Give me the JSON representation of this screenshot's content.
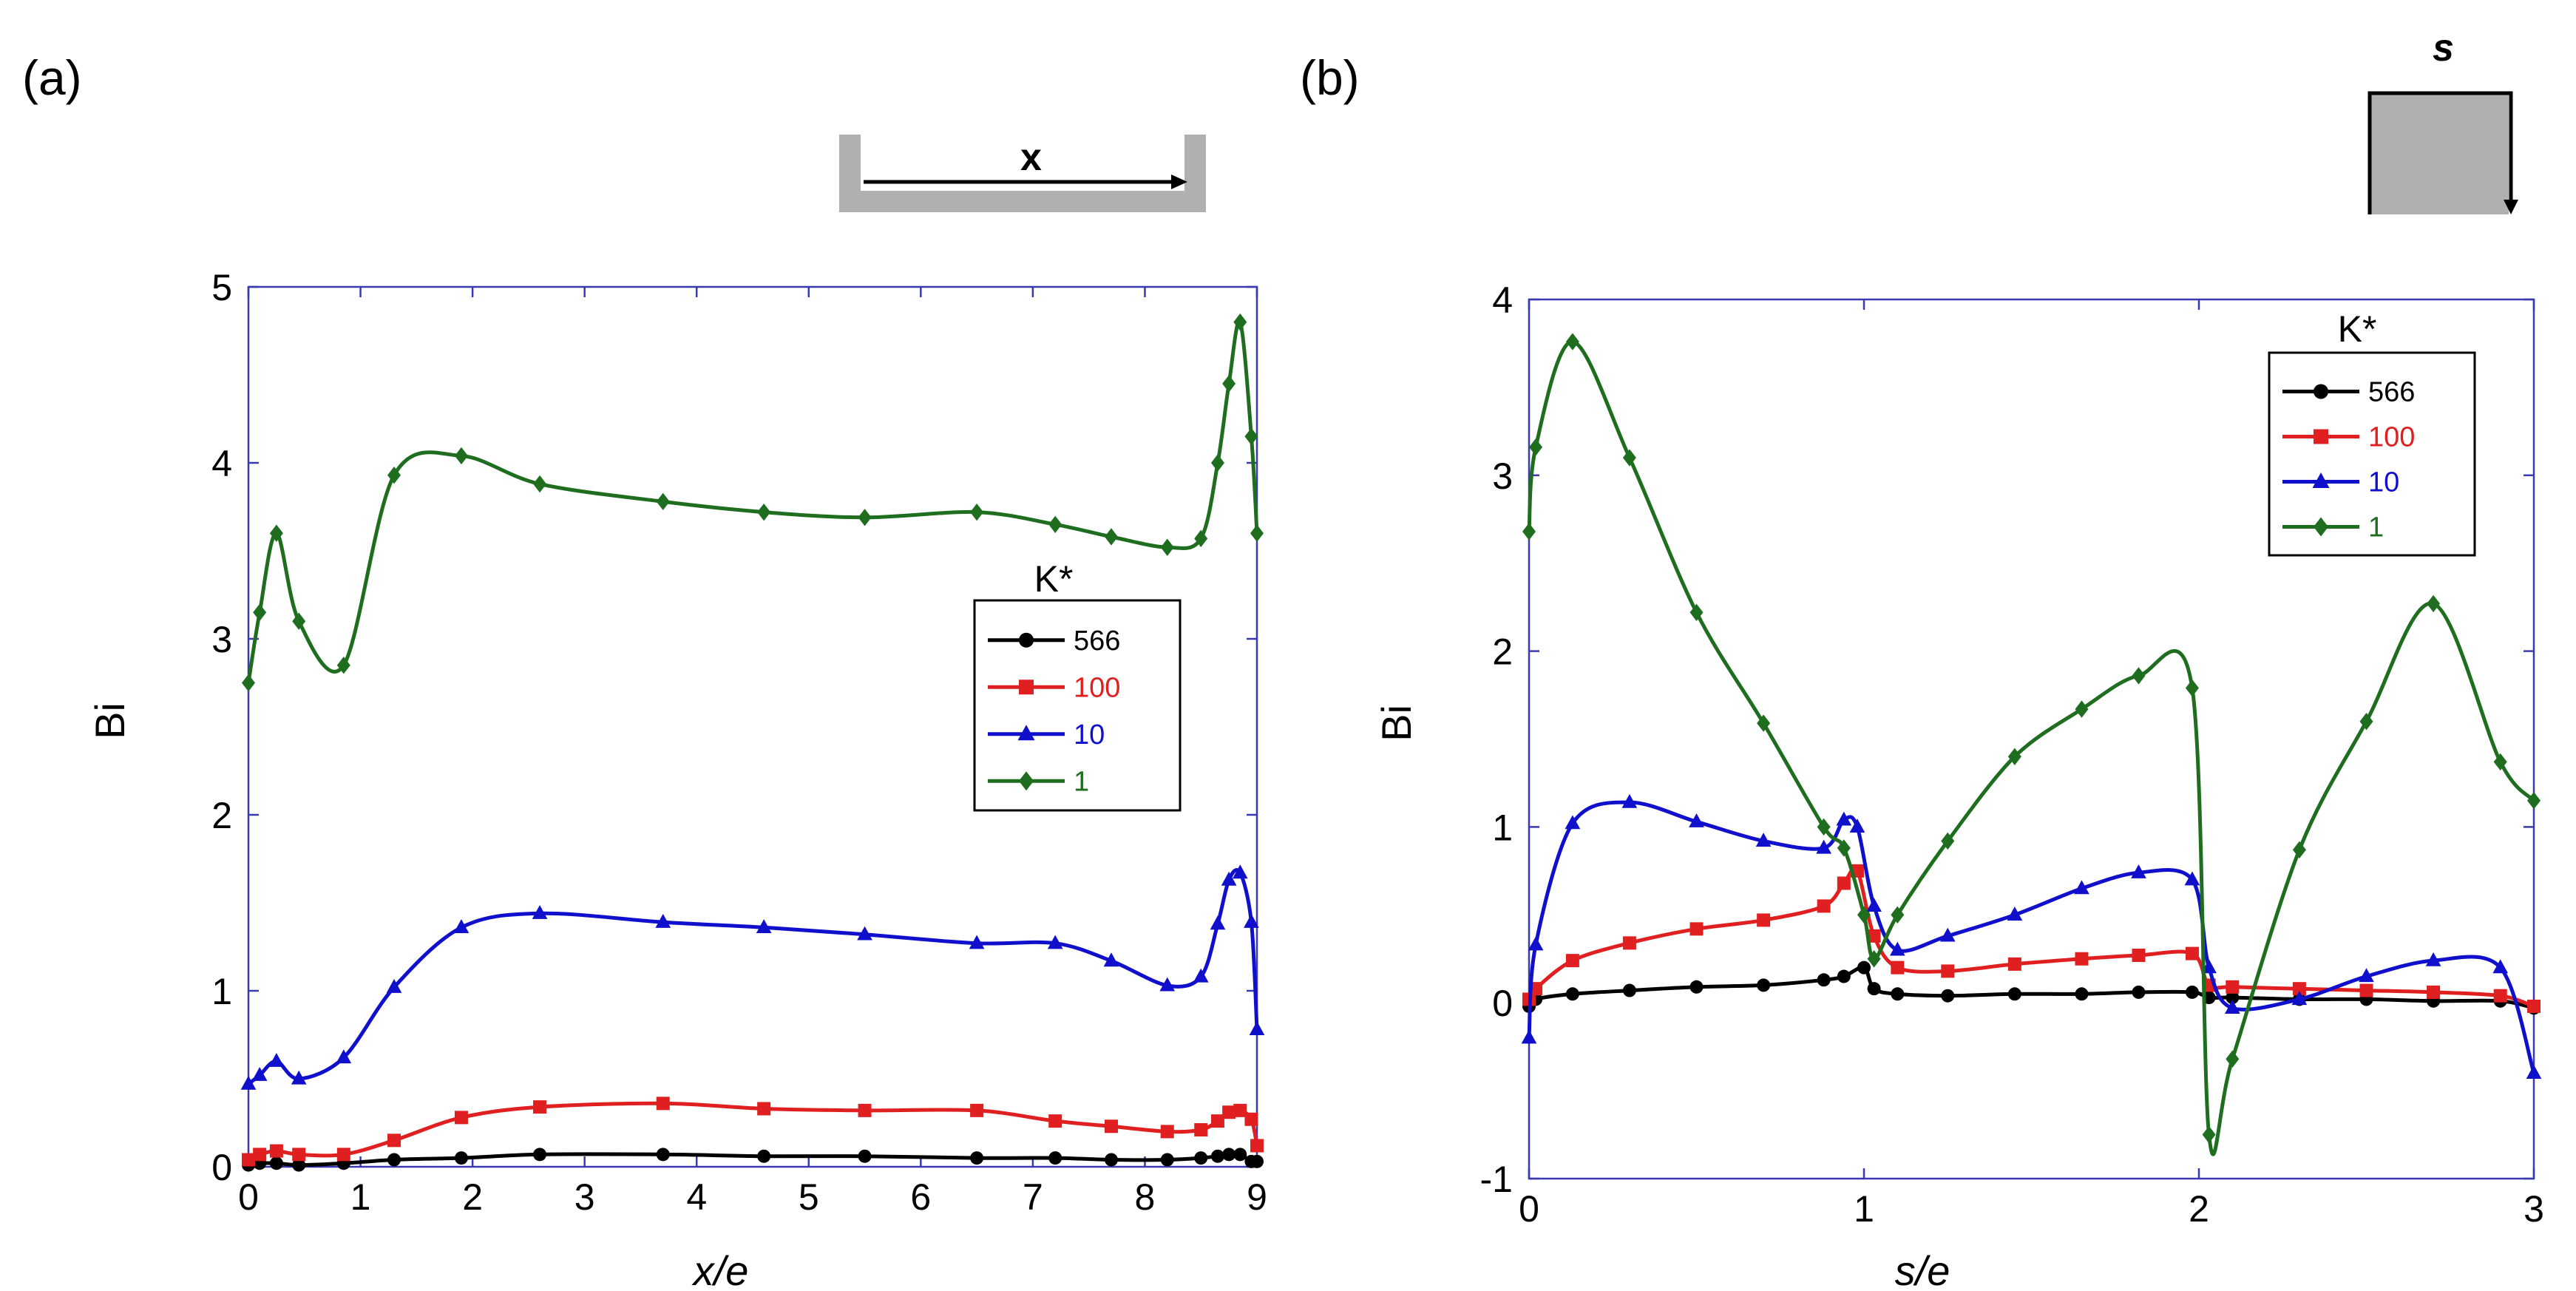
{
  "colors": {
    "frame": "#3a3ab0",
    "s566": "#000000",
    "s100": "#e02020",
    "s10": "#1010cc",
    "s1": "#1f6e1f",
    "schematic": "#b0b0b0"
  },
  "chart_data": [
    {
      "type": "line",
      "panel_label": "(a)",
      "schematic_label": "x",
      "xlabel": "x/e",
      "ylabel": "Bi",
      "xlim": [
        0,
        9
      ],
      "ylim": [
        0,
        5
      ],
      "x_ticks": [
        "0",
        "1",
        "2",
        "3",
        "4",
        "5",
        "6",
        "7",
        "8",
        "9"
      ],
      "y_ticks": [
        "0",
        "1",
        "2",
        "3",
        "4",
        "5"
      ],
      "legend_title": "K*",
      "legend_position": "right",
      "series": [
        {
          "name": "566",
          "color": "#000000",
          "marker": "circle",
          "x": [
            0,
            0.1,
            0.25,
            0.45,
            0.85,
            1.3,
            1.9,
            2.6,
            3.7,
            4.6,
            5.5,
            6.5,
            7.2,
            7.7,
            8.2,
            8.5,
            8.65,
            8.75,
            8.85,
            8.95,
            9.0
          ],
          "y": [
            0.01,
            0.02,
            0.02,
            0.01,
            0.02,
            0.04,
            0.05,
            0.07,
            0.07,
            0.06,
            0.06,
            0.05,
            0.05,
            0.04,
            0.04,
            0.05,
            0.06,
            0.07,
            0.07,
            0.03,
            0.03
          ]
        },
        {
          "name": "100",
          "color": "#e02020",
          "marker": "square",
          "x": [
            0,
            0.1,
            0.25,
            0.45,
            0.85,
            1.3,
            1.9,
            2.6,
            3.7,
            4.6,
            5.5,
            6.5,
            7.2,
            7.7,
            8.2,
            8.5,
            8.65,
            8.75,
            8.85,
            8.95,
            9.0
          ],
          "y": [
            0.04,
            0.07,
            0.09,
            0.07,
            0.07,
            0.15,
            0.28,
            0.34,
            0.36,
            0.33,
            0.32,
            0.32,
            0.26,
            0.23,
            0.2,
            0.21,
            0.26,
            0.31,
            0.32,
            0.27,
            0.12
          ]
        },
        {
          "name": "10",
          "color": "#1010cc",
          "marker": "triangle",
          "x": [
            0,
            0.1,
            0.25,
            0.45,
            0.85,
            1.3,
            1.9,
            2.6,
            3.7,
            4.6,
            5.5,
            6.5,
            7.2,
            7.7,
            8.2,
            8.5,
            8.65,
            8.75,
            8.85,
            8.95,
            9.0
          ],
          "y": [
            0.47,
            0.52,
            0.6,
            0.5,
            0.62,
            1.02,
            1.36,
            1.44,
            1.39,
            1.36,
            1.32,
            1.27,
            1.27,
            1.17,
            1.03,
            1.08,
            1.38,
            1.63,
            1.67,
            1.39,
            0.78
          ]
        },
        {
          "name": "1",
          "color": "#1f6e1f",
          "marker": "diamond",
          "x": [
            0,
            0.1,
            0.25,
            0.45,
            0.85,
            1.3,
            1.9,
            2.6,
            3.7,
            4.6,
            5.5,
            6.5,
            7.2,
            7.7,
            8.2,
            8.5,
            8.65,
            8.75,
            8.85,
            8.95,
            9.0
          ],
          "y": [
            2.75,
            3.15,
            3.6,
            3.1,
            2.85,
            3.93,
            4.04,
            3.88,
            3.78,
            3.72,
            3.69,
            3.72,
            3.65,
            3.58,
            3.52,
            3.57,
            4.0,
            4.45,
            4.8,
            4.15,
            3.6
          ]
        }
      ]
    },
    {
      "type": "line",
      "panel_label": "(b)",
      "schematic_label": "s",
      "xlabel": "s/e",
      "ylabel": "Bi",
      "xlim": [
        0,
        3
      ],
      "ylim": [
        -1,
        4
      ],
      "x_ticks": [
        "0",
        "1",
        "2",
        "3"
      ],
      "y_ticks": [
        "-1",
        "0",
        "1",
        "2",
        "3",
        "4"
      ],
      "legend_title": "K*",
      "legend_position": "top-right",
      "series": [
        {
          "name": "566",
          "color": "#000000",
          "marker": "circle",
          "x": [
            0,
            0.02,
            0.13,
            0.3,
            0.5,
            0.7,
            0.88,
            0.94,
            1.0,
            1.03,
            1.1,
            1.25,
            1.45,
            1.65,
            1.82,
            1.98,
            2.03,
            2.1,
            2.3,
            2.5,
            2.7,
            2.9,
            3.0
          ],
          "y": [
            -0.02,
            0.02,
            0.05,
            0.07,
            0.09,
            0.1,
            0.13,
            0.15,
            0.2,
            0.08,
            0.05,
            0.04,
            0.05,
            0.05,
            0.06,
            0.06,
            0.03,
            0.03,
            0.02,
            0.02,
            0.01,
            0.01,
            -0.03
          ]
        },
        {
          "name": "100",
          "color": "#e02020",
          "marker": "square",
          "x": [
            0,
            0.02,
            0.13,
            0.3,
            0.5,
            0.7,
            0.88,
            0.94,
            0.98,
            1.03,
            1.1,
            1.25,
            1.45,
            1.65,
            1.82,
            1.98,
            2.03,
            2.1,
            2.3,
            2.5,
            2.7,
            2.9,
            3.0
          ],
          "y": [
            0.02,
            0.08,
            0.24,
            0.34,
            0.42,
            0.47,
            0.55,
            0.68,
            0.75,
            0.38,
            0.2,
            0.18,
            0.22,
            0.25,
            0.27,
            0.28,
            0.1,
            0.09,
            0.08,
            0.07,
            0.06,
            0.04,
            -0.02
          ]
        },
        {
          "name": "10",
          "color": "#1010cc",
          "marker": "triangle",
          "x": [
            0,
            0.02,
            0.13,
            0.3,
            0.5,
            0.7,
            0.88,
            0.94,
            0.98,
            1.03,
            1.1,
            1.25,
            1.45,
            1.65,
            1.82,
            1.98,
            2.03,
            2.1,
            2.3,
            2.5,
            2.7,
            2.9,
            3.0
          ],
          "y": [
            -0.2,
            0.33,
            1.02,
            1.14,
            1.03,
            0.92,
            0.88,
            1.04,
            1.0,
            0.55,
            0.3,
            0.38,
            0.5,
            0.65,
            0.74,
            0.7,
            0.2,
            -0.03,
            0.02,
            0.15,
            0.24,
            0.2,
            -0.4
          ]
        },
        {
          "name": "1",
          "color": "#1f6e1f",
          "marker": "diamond",
          "x": [
            0,
            0.02,
            0.13,
            0.3,
            0.5,
            0.7,
            0.88,
            0.94,
            1.0,
            1.03,
            1.1,
            1.25,
            1.45,
            1.65,
            1.82,
            1.98,
            2.03,
            2.1,
            2.3,
            2.5,
            2.7,
            2.9,
            3.0
          ],
          "y": [
            2.68,
            3.16,
            3.76,
            3.1,
            2.22,
            1.59,
            1.0,
            0.88,
            0.5,
            0.25,
            0.5,
            0.92,
            1.4,
            1.67,
            1.86,
            1.79,
            -0.75,
            -0.32,
            0.87,
            1.6,
            2.27,
            1.37,
            1.15
          ]
        }
      ]
    }
  ]
}
